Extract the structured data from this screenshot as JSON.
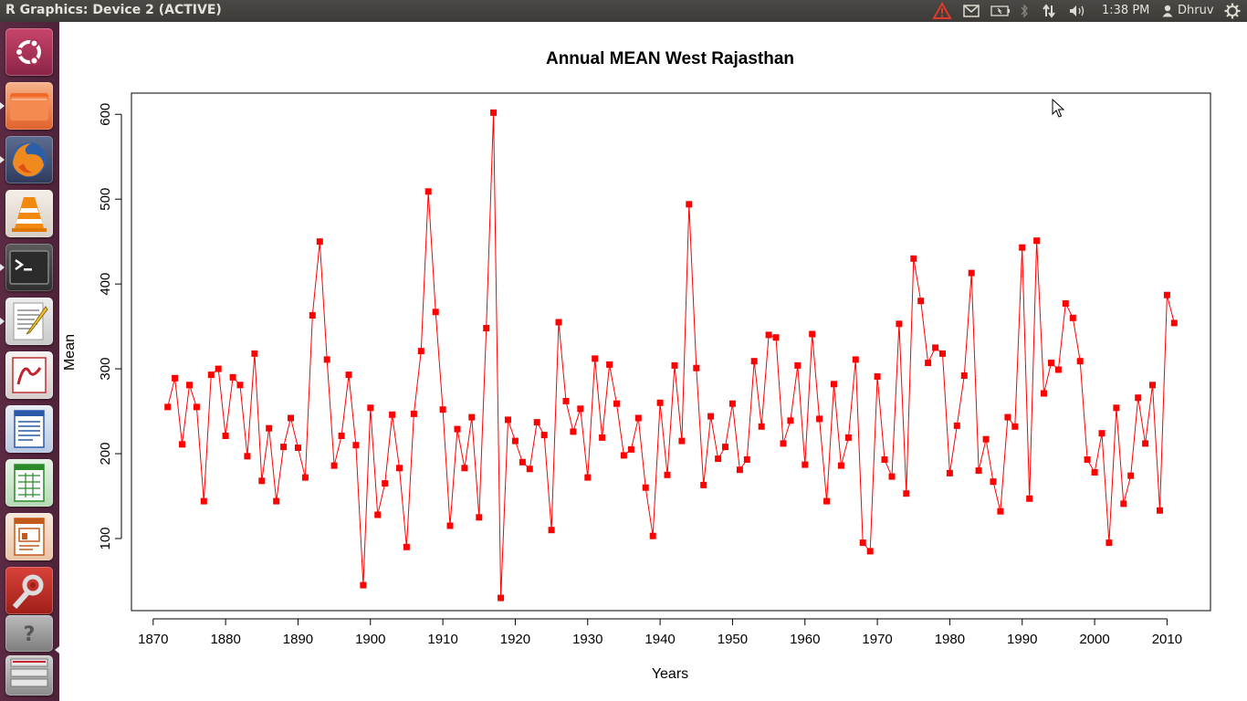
{
  "topbar": {
    "window_title": "R Graphics: Device 2 (ACTIVE)",
    "clock": "1:38 PM",
    "user": "Dhruv",
    "icons": [
      "warning-icon",
      "mail-icon",
      "battery-icon",
      "bluetooth-icon",
      "network-icon",
      "volume-icon",
      "user-icon",
      "gear-icon"
    ]
  },
  "launcher": {
    "items": [
      {
        "name": "Ubuntu Dash",
        "icon": "ubuntu-logo-icon"
      },
      {
        "name": "Files",
        "icon": "folder-icon"
      },
      {
        "name": "Firefox",
        "icon": "firefox-icon"
      },
      {
        "name": "VLC",
        "icon": "vlc-cone-icon"
      },
      {
        "name": "Terminal",
        "icon": "terminal-icon"
      },
      {
        "name": "Text Editor",
        "icon": "text-editor-icon"
      },
      {
        "name": "Document Viewer",
        "icon": "document-viewer-icon"
      },
      {
        "name": "LibreOffice Writer",
        "icon": "writer-icon"
      },
      {
        "name": "LibreOffice Calc",
        "icon": "calc-icon"
      },
      {
        "name": "LibreOffice Impress",
        "icon": "impress-icon"
      },
      {
        "name": "System Settings",
        "icon": "settings-icon"
      },
      {
        "name": "Unknown App",
        "icon": "question-mark-icon"
      },
      {
        "name": "Workspaces",
        "icon": "workspace-icon"
      }
    ]
  },
  "chart_data": {
    "type": "line",
    "title": "Annual MEAN West Rajasthan",
    "xlabel": "Years",
    "ylabel": "Mean",
    "xlim": [
      1867,
      2016
    ],
    "ylim": [
      15,
      625
    ],
    "xticks": [
      1870,
      1880,
      1890,
      1900,
      1910,
      1920,
      1930,
      1940,
      1950,
      1960,
      1970,
      1980,
      1990,
      2000,
      2010
    ],
    "yticks": [
      100,
      200,
      300,
      400,
      500,
      600
    ],
    "color": "#ff0000",
    "marker": "square",
    "grid": false,
    "legend": "none",
    "x_start": 1872,
    "y": [
      255,
      289,
      211,
      281,
      255,
      144,
      293,
      300,
      221,
      290,
      281,
      197,
      318,
      168,
      230,
      144,
      208,
      242,
      207,
      172,
      363,
      450,
      311,
      186,
      221,
      293,
      210,
      45,
      254,
      128,
      165,
      246,
      183,
      90,
      247,
      321,
      509,
      367,
      252,
      115,
      229,
      183,
      243,
      125,
      348,
      602,
      30,
      240,
      215,
      190,
      182,
      237,
      222,
      110,
      355,
      262,
      226,
      253,
      172,
      312,
      219,
      305,
      259,
      198,
      205,
      242,
      160,
      103,
      260,
      175,
      304,
      215,
      494,
      301,
      163,
      244,
      194,
      208,
      259,
      181,
      193,
      309,
      232,
      340,
      337,
      212,
      239,
      304,
      187,
      341,
      241,
      144,
      282,
      186,
      219,
      311,
      95,
      85,
      291,
      193,
      173,
      353,
      153,
      430,
      380,
      307,
      325,
      318,
      177,
      233,
      292,
      413,
      180,
      217,
      167,
      132,
      243,
      232,
      443,
      147,
      451,
      271,
      307,
      299,
      377,
      360,
      309,
      193,
      178,
      224,
      95,
      254,
      141,
      174,
      266,
      212,
      281,
      133,
      387,
      354
    ]
  }
}
